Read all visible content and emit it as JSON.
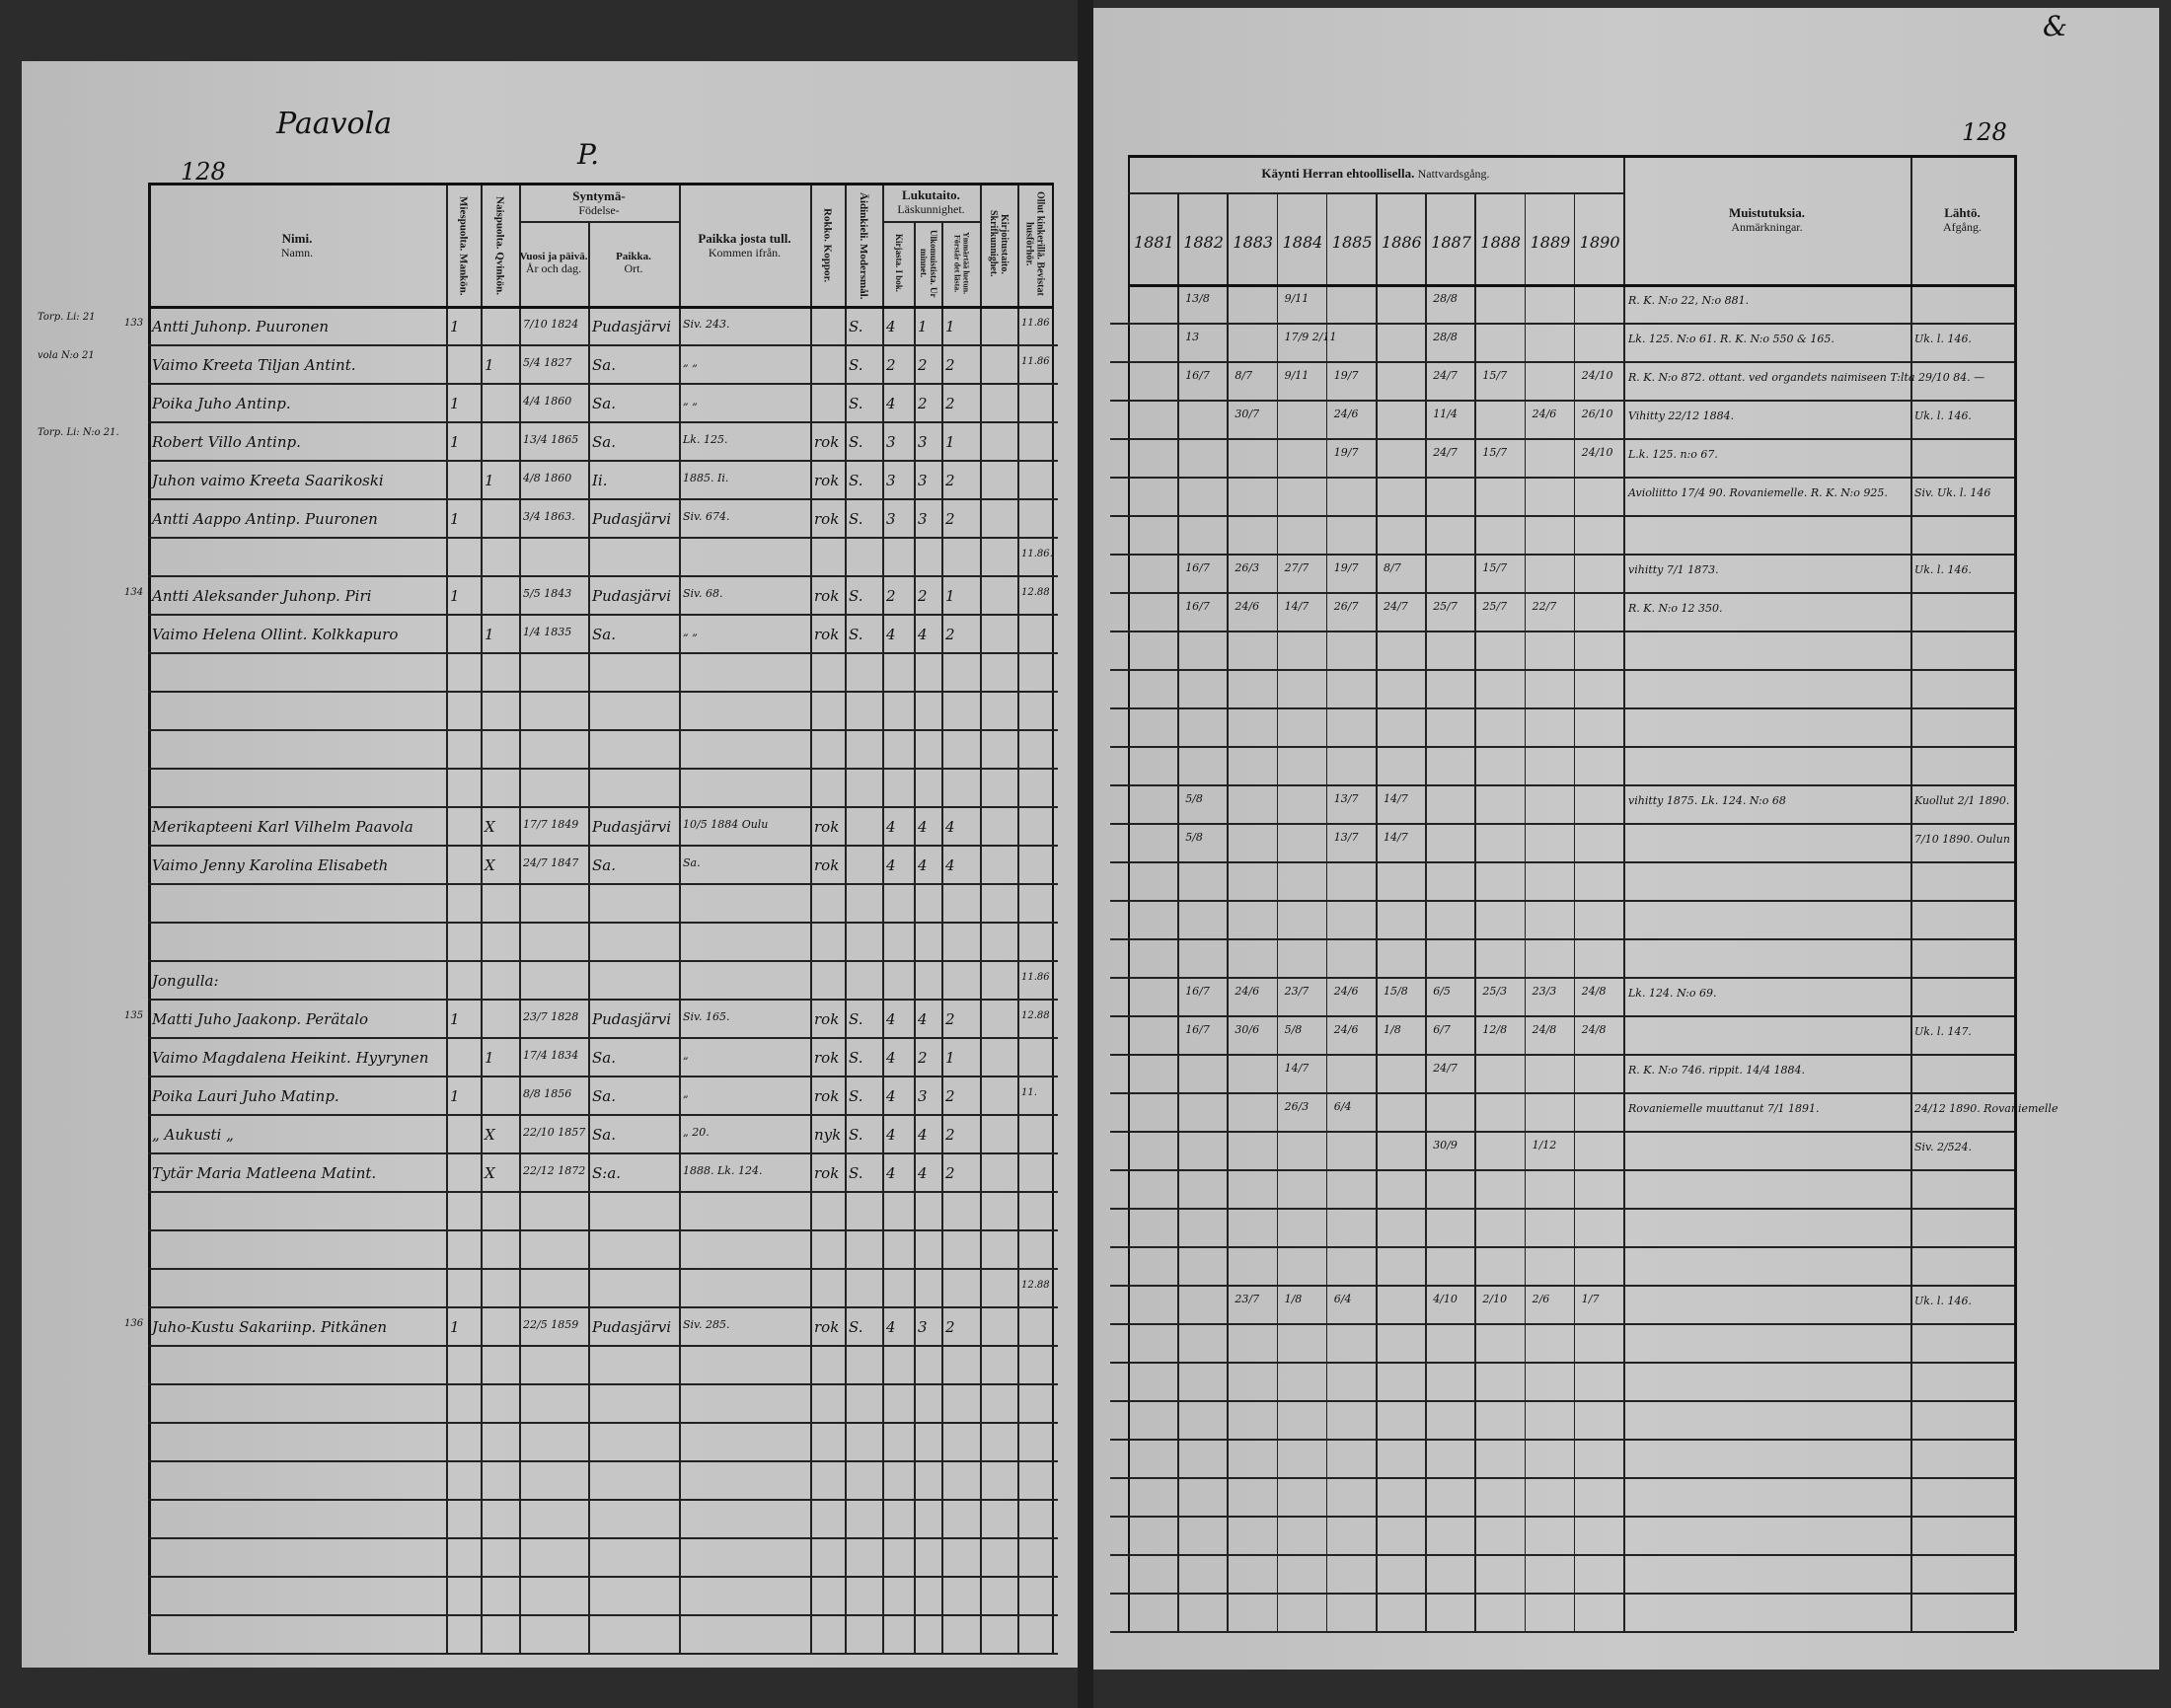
{
  "left_page": {
    "page_number": "128",
    "village": "Paavola",
    "letter": "P."
  },
  "right_page": {
    "page_number": "128",
    "corner_mark": "&"
  },
  "left_header": {
    "name": "Nimi.",
    "name_sv": "Namn.",
    "male": "Miespuolta. Mankön.",
    "female": "Naispuolta. Qvinkön.",
    "birth": "Syntymä-",
    "birth_sv": "Födelse-",
    "born_date": "Vuosi ja päivä.",
    "born_date_sv": "År och dag.",
    "born_place": "Paikka.",
    "born_place_sv": "Ort.",
    "from": "Paikka josta tull.",
    "from_sv": "Kommen ifrån.",
    "smallpox": "Rokko. Koppor.",
    "tongue": "Äidinkieli. Modersmål.",
    "literacy": "Lukutaito.",
    "literacy_sv": "Läskunnighet.",
    "read_book": "Kirjasta. I bok.",
    "read_memory": "Ulkomuistista. Ur minnet.",
    "understands": "Ymmärtää luetun. Förstår det lästa.",
    "writing": "Kirjoitustaito. Skrifkunnighet.",
    "catechism": "Ollut kinkerillä. Bevistat husförhör."
  },
  "right_header": {
    "communion": "Käynti Herran ehtoollisella.",
    "communion_sv": "Nattvardsgång.",
    "years": [
      "1881",
      "1882",
      "1883",
      "1884",
      "1885",
      "1886",
      "1887",
      "1888",
      "1889",
      "1890"
    ],
    "remarks": "Muistutuksia.",
    "remarks_sv": "Anmärkningar.",
    "departure": "Lähtö.",
    "departure_sv": "Afgång."
  },
  "rows": [
    {
      "margin": "Torp. Li: 21",
      "no": "133",
      "name": "Antti Juhonp. Puuronen",
      "male": "1",
      "born_date": "7/10 1824",
      "born_place": "Pudasjärvi",
      "from": "Siv. 243.",
      "tongue": "S.",
      "read_book": "4",
      "read_memory": "1",
      "understands": "1",
      "catechism": "11.86",
      "communion": {
        "1882": "13/8",
        "1884": "9/11",
        "1887": "28/8"
      },
      "remarks": "R. K. N:o 22, N:o 881."
    },
    {
      "margin": "vola N:o 21",
      "name": "Vaimo Kreeta Tiljan Antint.",
      "female": "1",
      "born_date": "5/4 1827",
      "born_place": "Sa.",
      "from": "„ „",
      "tongue": "S.",
      "read_book": "2",
      "read_memory": "2",
      "understands": "2",
      "catechism": "11.86",
      "communion": {
        "1882": "13",
        "1884": "17/9 2/11",
        "1887": "28/8"
      },
      "remarks": "Lk. 125. N:o 61. R. K. N:o 550 & 165.",
      "departure": "Uk. l. 146."
    },
    {
      "name": "Poika Juho Antinp.",
      "male": "1",
      "born_date": "4/4 1860",
      "born_place": "Sa.",
      "from": "„ „",
      "tongue": "S.",
      "read_book": "4",
      "read_memory": "2",
      "understands": "2",
      "communion": {
        "1882": "16/7",
        "1883": "8/7",
        "1884": "9/11",
        "1885": "19/7",
        "1887": "24/7",
        "1888": "15/7",
        "1890": "24/10"
      },
      "remarks": "R. K. N:o 872. ottant. ved organdets naimiseen T:lta 29/10 84. —"
    },
    {
      "margin": "Torp. Li: N:o 21.",
      "name": "Robert Villo Antinp.",
      "male": "1",
      "born_date": "13/4 1865",
      "born_place": "Sa.",
      "from": "Lk. 125.",
      "smallpox": "rok",
      "tongue": "S.",
      "read_book": "3",
      "read_memory": "3",
      "understands": "1",
      "communion": {
        "1883": "30/7",
        "1885": "24/6",
        "1887": "11/4",
        "1889": "24/6",
        "1890": "26/10"
      },
      "remarks": "Vihitty 22/12 1884.",
      "departure": "Uk. l. 146."
    },
    {
      "name": "Juhon vaimo Kreeta Saarikoski",
      "female": "1",
      "born_date": "4/8 1860",
      "born_place": "Ii.",
      "from": "1885. Ii.",
      "smallpox": "rok",
      "tongue": "S.",
      "read_book": "3",
      "read_memory": "3",
      "understands": "2",
      "communion": {
        "1885": "19/7",
        "1887": "24/7",
        "1888": "15/7",
        "1890": "24/10"
      },
      "remarks": "L.k. 125. n:o 67."
    },
    {
      "name": "Antti Aappo Antinp. Puuronen",
      "male": "1",
      "born_date": "3/4 1863.",
      "born_place": "Pudasjärvi",
      "from": "Siv. 674.",
      "smallpox": "rok",
      "tongue": "S.",
      "read_book": "3",
      "read_memory": "3",
      "understands": "2",
      "remarks": "Avioliitto 17/4 90. Rovaniemelle. R. K. N:o 925.",
      "departure": "Siv. Uk. l. 146"
    },
    {
      "catechism": "11.86."
    },
    {
      "no": "134",
      "name": "Antti Aleksander Juhonp. Piri",
      "male": "1",
      "born_date": "5/5 1843",
      "born_place": "Pudasjärvi",
      "from": "Siv. 68.",
      "smallpox": "rok",
      "tongue": "S.",
      "read_book": "2",
      "read_memory": "2",
      "understands": "1",
      "catechism": "12.88",
      "communion": {
        "1882": "16/7",
        "1883": "26/3",
        "1884": "27/7",
        "1885": "19/7",
        "1886": "8/7",
        "1888": "15/7"
      },
      "remarks": "vihitty 7/1 1873.",
      "departure": "Uk. l. 146."
    },
    {
      "name": "Vaimo Helena Ollint. Kolkkapuro",
      "female": "1",
      "born_date": "1/4 1835",
      "born_place": "Sa.",
      "from": "„ „",
      "smallpox": "rok",
      "tongue": "S.",
      "read_book": "4",
      "read_memory": "4",
      "understands": "2",
      "communion": {
        "1882": "16/7",
        "1883": "24/6",
        "1884": "14/7",
        "1885": "26/7",
        "1886": "24/7",
        "1887": "25/7",
        "1888": "25/7",
        "1889": "22/7"
      },
      "remarks": "R. K. N:o 12 350."
    },
    {},
    {},
    {},
    {},
    {
      "name": "Merikapteeni Karl Vilhelm Paavola",
      "female": "X",
      "born_date": "17/7 1849",
      "born_place": "Pudasjärvi",
      "from": "10/5 1884 Oulu",
      "smallpox": "rok",
      "read_book": "4",
      "read_memory": "4",
      "understands": "4",
      "communion": {
        "1882": "5/8",
        "1885": "13/7",
        "1886": "14/7"
      },
      "remarks": "vihitty 1875. Lk. 124. N:o 68",
      "departure": "Kuollut 2/1 1890."
    },
    {
      "name": "Vaimo Jenny Karolina Elisabeth",
      "female": "X",
      "born_date": "24/7 1847",
      "born_place": "Sa.",
      "from": "Sa.",
      "smallpox": "rok",
      "read_book": "4",
      "read_memory": "4",
      "understands": "4",
      "communion": {
        "1882": "5/8",
        "1885": "13/7",
        "1886": "14/7"
      },
      "departure": "7/10 1890. Oulun"
    },
    {},
    {},
    {
      "name": "Jongulla:",
      "catechism": "11.86"
    },
    {
      "no": "135",
      "name": "Matti Juho Jaakonp. Perätalo",
      "male": "1",
      "born_date": "23/7 1828",
      "born_place": "Pudasjärvi",
      "from": "Siv. 165.",
      "smallpox": "rok",
      "tongue": "S.",
      "read_book": "4",
      "read_memory": "4",
      "understands": "2",
      "catechism": "12.88",
      "communion": {
        "1882": "16/7",
        "1883": "24/6",
        "1884": "23/7",
        "1885": "24/6",
        "1886": "15/8",
        "1887": "6/5",
        "1888": "25/3",
        "1889": "23/3",
        "1890": "24/8"
      },
      "remarks": "Lk. 124. N:o 69."
    },
    {
      "name": "Vaimo Magdalena Heikint. Hyyrynen",
      "female": "1",
      "born_date": "17/4 1834",
      "born_place": "Sa.",
      "from": "„",
      "smallpox": "rok",
      "tongue": "S.",
      "read_book": "4",
      "read_memory": "2",
      "understands": "1",
      "communion": {
        "1882": "16/7",
        "1883": "30/6",
        "1884": "5/8",
        "1885": "24/6",
        "1886": "1/8",
        "1887": "6/7",
        "1888": "12/8",
        "1889": "24/8",
        "1890": "24/8"
      },
      "departure": "Uk. l. 147."
    },
    {
      "name": "Poika Lauri Juho Matinp.",
      "male": "1",
      "born_date": "8/8 1856",
      "born_place": "Sa.",
      "from": "„",
      "smallpox": "rok",
      "tongue": "S.",
      "read_book": "4",
      "read_memory": "3",
      "understands": "2",
      "catechism": "11.",
      "communion": {
        "1884": "14/7",
        "1887": "24/7"
      },
      "remarks": "R. K. N:o 746. rippit. 14/4 1884."
    },
    {
      "name": "„ Aukusti „",
      "female": "X",
      "born_date": "22/10 1857",
      "born_place": "Sa.",
      "from": "„ 20.",
      "smallpox": "nyk",
      "tongue": "S.",
      "read_book": "4",
      "read_memory": "4",
      "understands": "2",
      "communion": {
        "1884": "26/3",
        "1885": "6/4"
      },
      "remarks": "Rovaniemelle muuttanut 7/1 1891.",
      "departure": "24/12 1890. Rovaniemelle"
    },
    {
      "name": "Tytär Maria Matleena Matint.",
      "female": "X",
      "born_date": "22/12 1872",
      "born_place": "S:a.",
      "from": "1888. Lk. 124.",
      "smallpox": "rok",
      "tongue": "S.",
      "read_book": "4",
      "read_memory": "4",
      "understands": "2",
      "communion": {
        "1887": "30/9",
        "1889": "1/12"
      },
      "departure": "Siv. 2/524."
    },
    {},
    {},
    {
      "catechism": "12.88"
    },
    {
      "no": "136",
      "name": "Juho-Kustu Sakariinp. Pitkänen",
      "male": "1",
      "born_date": "22/5 1859",
      "born_place": "Pudasjärvi",
      "from": "Siv. 285.",
      "smallpox": "rok",
      "tongue": "S.",
      "read_book": "4",
      "read_memory": "3",
      "understands": "2",
      "communion": {
        "1883": "23/7",
        "1884": "1/8",
        "1885": "6/4",
        "1887": "4/10",
        "1888": "2/10",
        "1889": "2/6",
        "1890": "1/7"
      },
      "departure": "Uk. l. 146."
    },
    {},
    {},
    {},
    {},
    {},
    {},
    {},
    {}
  ]
}
